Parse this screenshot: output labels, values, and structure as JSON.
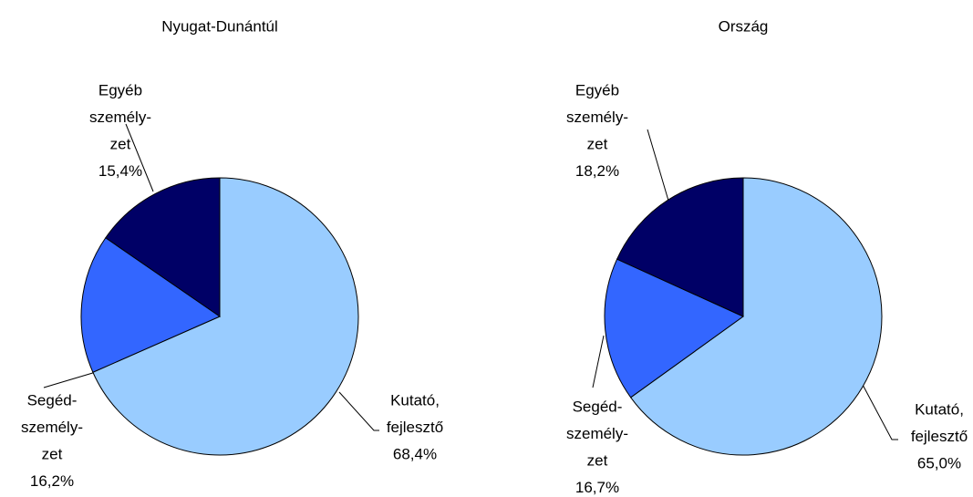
{
  "chart_data": [
    {
      "type": "pie",
      "title": "Nyugat-Dunántúl",
      "categories": [
        [
          "Kutató,",
          "fejlesztő"
        ],
        [
          "Segéd-",
          "személy-",
          "zet"
        ],
        [
          "Egyéb",
          "személy-",
          "zet"
        ]
      ],
      "values": [
        68.4,
        16.2,
        15.4
      ],
      "value_labels": [
        "68,4%",
        "16,2%",
        "15,4%"
      ],
      "colors": [
        "#99ccff",
        "#3366ff",
        "#000066"
      ]
    },
    {
      "type": "pie",
      "title": "Ország",
      "categories": [
        [
          "Kutató,",
          "fejlesztő"
        ],
        [
          "Segéd-",
          "személy-",
          "zet"
        ],
        [
          "Egyéb",
          "személy-",
          "zet"
        ]
      ],
      "values": [
        65.0,
        16.7,
        18.2
      ],
      "value_labels": [
        "65,0%",
        "16,7%",
        "18,2%"
      ],
      "colors": [
        "#99ccff",
        "#3366ff",
        "#000066"
      ]
    }
  ]
}
